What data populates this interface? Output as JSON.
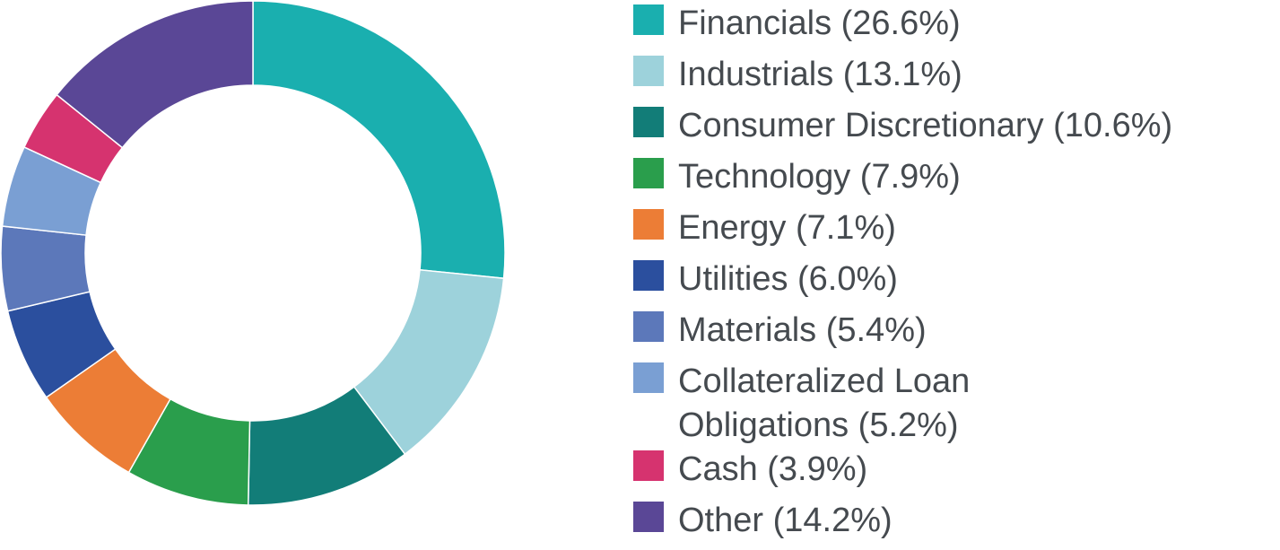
{
  "chart_data": {
    "type": "pie",
    "variant": "donut",
    "title": "",
    "legend_position": "right",
    "slices": [
      {
        "label": "Financials (26.6%)",
        "value": 26.6,
        "color": "#1aafaf"
      },
      {
        "label": "Industrials (13.1%)",
        "value": 13.1,
        "color": "#9dd2db"
      },
      {
        "label": "Consumer Discretionary (10.6%)",
        "value": 10.6,
        "color": "#127d78"
      },
      {
        "label": "Technology (7.9%)",
        "value": 7.9,
        "color": "#2a9e4c"
      },
      {
        "label": "Energy (7.1%)",
        "value": 7.1,
        "color": "#ec7d36"
      },
      {
        "label": "Utilities (6.0%)",
        "value": 6.0,
        "color": "#2b4f9e"
      },
      {
        "label": "Materials (5.4%)",
        "value": 5.4,
        "color": "#5c78ba"
      },
      {
        "label": "Collateralized Loan Obligations (5.2%)",
        "value": 5.2,
        "color": "#7a9fd3"
      },
      {
        "label": "Cash (3.9%)",
        "value": 3.9,
        "color": "#d6336f"
      },
      {
        "label": "Other (14.2%)",
        "value": 14.2,
        "color": "#5a4796"
      }
    ]
  }
}
